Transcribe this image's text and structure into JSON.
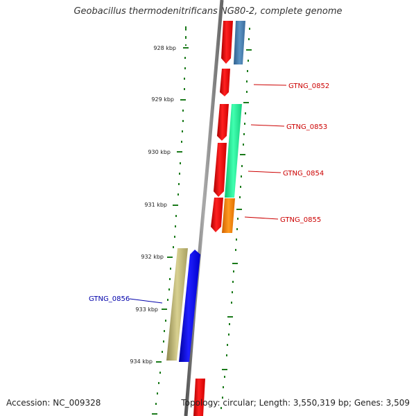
{
  "title": "Geobacillus thermodenitrificans NG80-2, complete genome",
  "footer": {
    "accession": "Accession: NC_009328",
    "summary": "Topology: circular; Length: 3,550,319 bp; Genes: 3,509"
  },
  "ruler": {
    "tick_labels": [
      "928 kbp",
      "929 kbp",
      "930 kbp",
      "931 kbp",
      "932 kbp",
      "933 kbp",
      "934 kbp"
    ]
  },
  "genes": [
    {
      "name": "GTNG_0852",
      "strand": "+",
      "color": "#cc0000"
    },
    {
      "name": "GTNG_0853",
      "strand": "+",
      "color": "#cc0000"
    },
    {
      "name": "GTNG_0854",
      "strand": "+",
      "color": "#cc0000"
    },
    {
      "name": "GTNG_0855",
      "strand": "+",
      "color": "#cc0000"
    },
    {
      "name": "GTNG_0856",
      "strand": "-",
      "color": "#0000aa"
    }
  ],
  "colors": {
    "forward_gene": "#ff0000",
    "reverse_gene": "#0000ff",
    "backbone": "#777777",
    "ruler_ticks": "#1a7a1a",
    "cog_blue": "#4a82b4",
    "cog_green": "#22ee99",
    "cog_orange": "#ff8800",
    "cog_khaki": "#b8b070"
  }
}
